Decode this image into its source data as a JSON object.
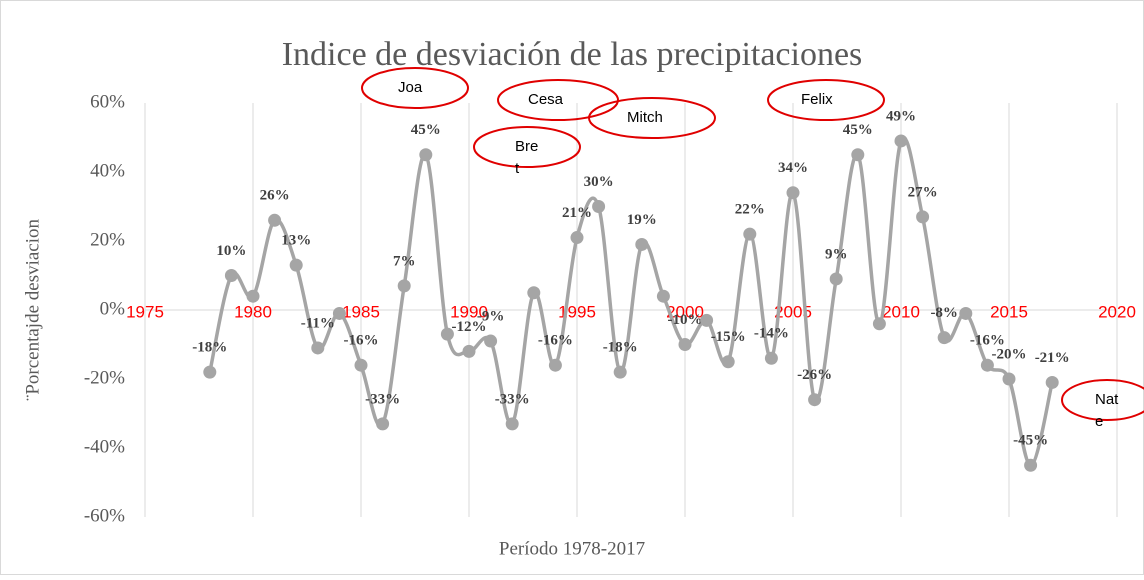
{
  "chart_data": {
    "type": "line",
    "title": "Indice de desviación de las precipitaciones",
    "xlabel": "Período 1978-2017",
    "ylabel": "¨Porcentajde desviacion",
    "x": [
      1978,
      1979,
      1980,
      1981,
      1982,
      1983,
      1984,
      1985,
      1986,
      1987,
      1988,
      1989,
      1990,
      1991,
      1992,
      1993,
      1994,
      1995,
      1996,
      1997,
      1998,
      1999,
      2000,
      2001,
      2002,
      2003,
      2004,
      2005,
      2006,
      2007,
      2008,
      2009,
      2010,
      2011,
      2012,
      2013,
      2014,
      2015,
      2016,
      2017
    ],
    "series": [
      {
        "name": "Indice",
        "color": "#a5a5a5",
        "values": [
          -18,
          10,
          4,
          26,
          13,
          -11,
          -1,
          -16,
          -33,
          7,
          45,
          -7,
          -12,
          -9,
          -33,
          5,
          -16,
          21,
          30,
          -18,
          19,
          4,
          -10,
          -3,
          -15,
          22,
          -14,
          34,
          -26,
          9,
          45,
          -4,
          49,
          27,
          -8,
          -1,
          -16,
          -20,
          -45,
          -21
        ],
        "value_labels": [
          "-18%",
          "10%",
          null,
          "26%",
          "13%",
          "-11%",
          null,
          "-16%",
          "-33%",
          "7%",
          "45%",
          null,
          "-12%",
          "-9%",
          "-33%",
          null,
          "-16%",
          "21%",
          "30%",
          "-18%",
          "19%",
          null,
          "-10%",
          null,
          "-15%",
          "22%",
          "-14%",
          "34%",
          "-26%",
          "9%",
          "45%",
          null,
          "49%",
          "27%",
          "-8%",
          null,
          "-16%",
          "-20%",
          "-45%",
          "-21%"
        ]
      }
    ],
    "xlim": [
      1975,
      2020
    ],
    "xticks": [
      1975,
      1980,
      1985,
      1990,
      1995,
      2000,
      2005,
      2010,
      2015,
      2020
    ],
    "ylim": [
      -60,
      60
    ],
    "yticks": [
      {
        "value": -60,
        "label": "-60%"
      },
      {
        "value": -40,
        "label": "-40%"
      },
      {
        "value": -20,
        "label": "-20%"
      },
      {
        "value": 0,
        "label": "0%"
      },
      {
        "value": 20,
        "label": "20%"
      },
      {
        "value": 40,
        "label": "40%"
      },
      {
        "value": 60,
        "label": "60%"
      }
    ],
    "grid": "x",
    "xtick_color": "#ff0000",
    "annotations": [
      "Joa",
      "Cesa",
      "Bret",
      "Mitch",
      "Felix",
      "Nate"
    ],
    "annotation_color": "#e00000"
  }
}
